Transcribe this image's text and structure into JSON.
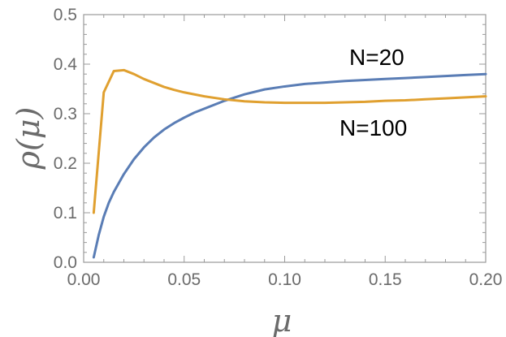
{
  "chart_data": {
    "type": "line",
    "title": "",
    "xlabel": "μ",
    "ylabel": "ρ(μ)",
    "xlim": [
      0,
      0.2
    ],
    "ylim": [
      0,
      0.5
    ],
    "grid": false,
    "legend": "inline labels",
    "x_ticks": [
      0.0,
      0.05,
      0.1,
      0.15,
      0.2
    ],
    "x_tick_labels": [
      "0.00",
      "0.05",
      "0.10",
      "0.15",
      "0.20"
    ],
    "y_ticks": [
      0.0,
      0.1,
      0.2,
      0.3,
      0.4,
      0.5
    ],
    "y_tick_labels": [
      "0.0",
      "0.1",
      "0.2",
      "0.3",
      "0.4",
      "0.5"
    ],
    "series": [
      {
        "name": "N=20",
        "color": "#5a7db5",
        "x": [
          0.005,
          0.0075,
          0.01,
          0.0125,
          0.015,
          0.0175,
          0.02,
          0.025,
          0.03,
          0.035,
          0.04,
          0.045,
          0.05,
          0.055,
          0.06,
          0.065,
          0.07,
          0.08,
          0.09,
          0.1,
          0.11,
          0.12,
          0.13,
          0.14,
          0.15,
          0.16,
          0.17,
          0.18,
          0.19,
          0.2
        ],
        "y": [
          0.01,
          0.055,
          0.092,
          0.12,
          0.142,
          0.16,
          0.178,
          0.208,
          0.232,
          0.252,
          0.268,
          0.281,
          0.292,
          0.302,
          0.31,
          0.318,
          0.326,
          0.339,
          0.349,
          0.355,
          0.36,
          0.363,
          0.366,
          0.368,
          0.37,
          0.372,
          0.374,
          0.376,
          0.378,
          0.38
        ]
      },
      {
        "name": "N=100",
        "color": "#e0a030",
        "x": [
          0.005,
          0.01,
          0.015,
          0.02,
          0.025,
          0.03,
          0.035,
          0.04,
          0.045,
          0.05,
          0.06,
          0.07,
          0.08,
          0.09,
          0.1,
          0.11,
          0.12,
          0.13,
          0.14,
          0.15,
          0.16,
          0.17,
          0.18,
          0.19,
          0.2
        ],
        "y": [
          0.1,
          0.343,
          0.386,
          0.388,
          0.38,
          0.37,
          0.362,
          0.354,
          0.348,
          0.343,
          0.335,
          0.329,
          0.325,
          0.323,
          0.322,
          0.322,
          0.322,
          0.323,
          0.324,
          0.326,
          0.327,
          0.329,
          0.331,
          0.333,
          0.335
        ]
      }
    ]
  }
}
